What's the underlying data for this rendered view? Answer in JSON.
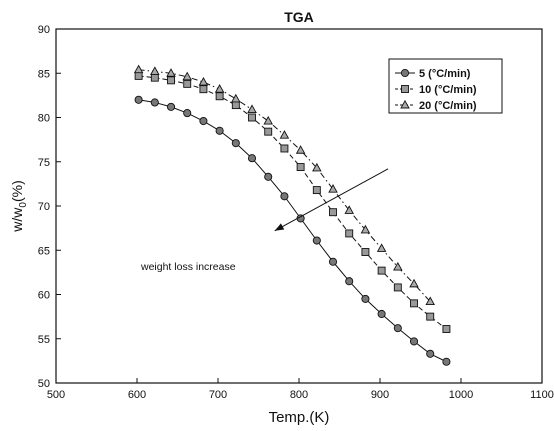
{
  "chart_data": {
    "type": "line",
    "title": "TGA",
    "xlabel": "Temp.(K)",
    "ylabel": "w/w",
    "ylabel_sub": "0",
    "ylabel_suffix": "(%)",
    "xlim": [
      500,
      1100
    ],
    "ylim": [
      50,
      90
    ],
    "xticks": [
      "500",
      "600",
      "700",
      "800",
      "900",
      "1000",
      "1100"
    ],
    "yticks": [
      "50",
      "55",
      "60",
      "65",
      "70",
      "75",
      "80",
      "85",
      "90"
    ],
    "grid": false,
    "legend_position": "top-right",
    "series": [
      {
        "name": "5 (°C/min)",
        "marker": "circle",
        "line_style": "solid",
        "x": [
          602,
          622,
          642,
          662,
          682,
          702,
          722,
          742,
          762,
          782,
          802,
          822,
          842,
          862,
          882,
          902,
          922,
          942,
          962,
          982
        ],
        "y": [
          82.0,
          81.7,
          81.2,
          80.5,
          79.6,
          78.5,
          77.1,
          75.4,
          73.3,
          71.1,
          68.6,
          66.1,
          63.7,
          61.5,
          59.5,
          57.8,
          56.2,
          54.7,
          53.3,
          52.4
        ]
      },
      {
        "name": "10 (°C/min)",
        "marker": "square",
        "line_style": "dashed",
        "x": [
          602,
          622,
          642,
          662,
          682,
          702,
          722,
          742,
          762,
          782,
          802,
          822,
          842,
          862,
          882,
          902,
          922,
          942,
          962,
          982
        ],
        "y": [
          84.7,
          84.5,
          84.2,
          83.8,
          83.2,
          82.4,
          81.4,
          80.0,
          78.4,
          76.5,
          74.4,
          71.8,
          69.3,
          66.9,
          64.8,
          62.7,
          60.8,
          59.0,
          57.5,
          56.1
        ]
      },
      {
        "name": "20 (°C/min)",
        "marker": "triangle",
        "line_style": "dashdot",
        "x": [
          602,
          622,
          642,
          662,
          682,
          702,
          722,
          742,
          762,
          782,
          802,
          822,
          842,
          862,
          882,
          902,
          922,
          942,
          962
        ],
        "y": [
          85.4,
          85.2,
          85.0,
          84.6,
          84.0,
          83.2,
          82.1,
          80.9,
          79.6,
          78.0,
          76.3,
          74.3,
          71.9,
          69.5,
          67.3,
          65.2,
          63.1,
          61.2,
          59.2
        ]
      }
    ],
    "annotation": {
      "text": "weight loss increase",
      "arrow_from": [
        910,
        74.2
      ],
      "arrow_to": [
        770,
        67.2
      ]
    }
  }
}
